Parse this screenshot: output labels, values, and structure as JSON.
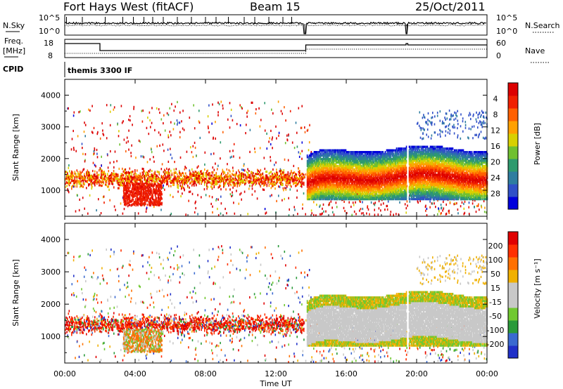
{
  "header": {
    "radar": "Fort Hays West (fitACF)",
    "beam": "Beam 15",
    "date": "25/Oct/2011"
  },
  "summary_panels": {
    "nsky_label": "N.Sky",
    "nsky_ticks": [
      "10^5",
      "10^0"
    ],
    "nsearch_label": "N.Search",
    "nsearch_ticks": [
      "10^5",
      "10^0"
    ],
    "freq_label": "Freq.",
    "freq_unit": "[MHz]",
    "freq_ticks": [
      "18",
      "8"
    ],
    "nave_label": "Nave",
    "nave_ticks": [
      "60",
      "0"
    ],
    "cpid_label": "CPID",
    "cpid_text": "themis 3300 IF"
  },
  "chart_data": [
    {
      "type": "heatmap",
      "name": "power",
      "ylabel": "Slant Range [km]",
      "xlabel": "",
      "yticks": [
        "1000",
        "2000",
        "3000",
        "4000"
      ],
      "ylim": [
        180,
        4500
      ],
      "xlim": [
        0,
        24
      ],
      "colorbar": {
        "label": "Power [dB]",
        "ticks": [
          "4",
          "8",
          "12",
          "16",
          "20",
          "24",
          "28"
        ],
        "colors": [
          "#0000dc",
          "#3050c8",
          "#2e7da0",
          "#2e9a6e",
          "#70c030",
          "#d8d000",
          "#ffa000",
          "#ff6000",
          "#f02000",
          "#dc0000"
        ]
      }
    },
    {
      "type": "heatmap",
      "name": "velocity",
      "ylabel": "Slant Range [km]",
      "xlabel": "Time UT",
      "yticks": [
        "1000",
        "2000",
        "3000",
        "4000"
      ],
      "ylim": [
        180,
        4500
      ],
      "xlim": [
        0,
        24
      ],
      "xticks": [
        "00:00",
        "04:00",
        "08:00",
        "12:00",
        "16:00",
        "20:00",
        "00:00"
      ],
      "colorbar": {
        "label": "Velocity [m s⁻¹]",
        "ticks": [
          "200",
          "100",
          "50",
          "15",
          "-15",
          "-50",
          "-100",
          "-200"
        ],
        "colors": [
          "#2030c8",
          "#3a6ad0",
          "#2a9a3a",
          "#70c830",
          "#c8c8c8",
          "#c8c8c8",
          "#f0b000",
          "#ff7000",
          "#ff3000",
          "#e00000"
        ]
      }
    }
  ]
}
